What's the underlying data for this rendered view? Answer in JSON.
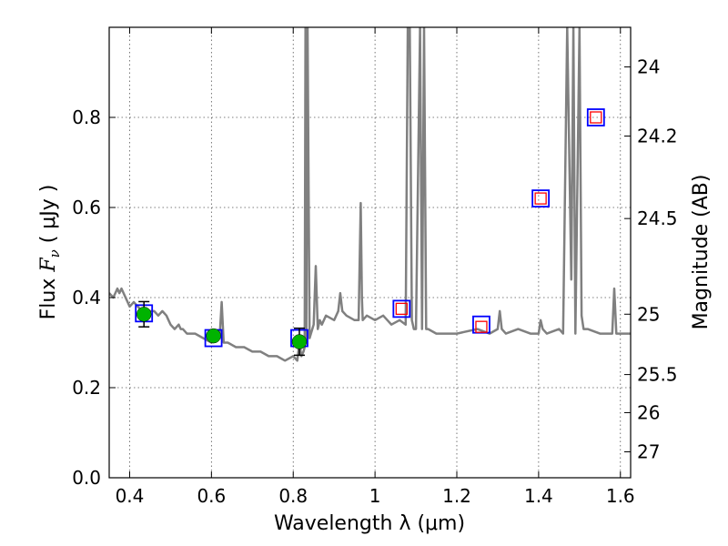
{
  "chart_data": {
    "type": "scatter",
    "title": "",
    "xlabel": "Wavelength  λ (μm)",
    "ylabel": "Flux  F_ν  ( μJy )",
    "ylabel_parts": {
      "pre": "Flux ",
      "symbol": "F",
      "sub": "ν",
      "post": "  ( μJy )"
    },
    "y2label": "Magnitude (AB)",
    "xlim": [
      0.35,
      1.625
    ],
    "ylim": [
      0.0,
      1.0
    ],
    "grid": true,
    "xticks": [
      {
        "value": 0.4,
        "label": "0.4"
      },
      {
        "value": 0.6,
        "label": "0.6"
      },
      {
        "value": 0.8,
        "label": "0.8"
      },
      {
        "value": 1.0,
        "label": "1"
      },
      {
        "value": 1.2,
        "label": "1.2"
      },
      {
        "value": 1.4,
        "label": "1.4"
      },
      {
        "value": 1.6,
        "label": "1.6"
      }
    ],
    "yticks": [
      {
        "value": 0.0,
        "label": "0.0"
      },
      {
        "value": 0.2,
        "label": "0.2"
      },
      {
        "value": 0.4,
        "label": "0.4"
      },
      {
        "value": 0.6,
        "label": "0.6"
      },
      {
        "value": 0.8,
        "label": "0.8"
      }
    ],
    "y2ticks": [
      {
        "value": 24,
        "label": "24"
      },
      {
        "value": 24.2,
        "label": "24.2"
      },
      {
        "value": 24.5,
        "label": "24.5"
      },
      {
        "value": 25,
        "label": "25"
      },
      {
        "value": 25.5,
        "label": "25.5"
      },
      {
        "value": 26,
        "label": "26"
      },
      {
        "value": 27,
        "label": "27"
      }
    ],
    "colors": {
      "sed": "#808080",
      "model_box": "#0000ff",
      "obs_point": "#00b300",
      "upper_box": "#ff0000",
      "grid": "#555555"
    },
    "series": [
      {
        "type": "line",
        "color": "#808080",
        "x": [
          0.35,
          0.36,
          0.37,
          0.375,
          0.38,
          0.39,
          0.4,
          0.41,
          0.42,
          0.43,
          0.44,
          0.45,
          0.46,
          0.47,
          0.48,
          0.49,
          0.5,
          0.51,
          0.52,
          0.525,
          0.53,
          0.54,
          0.55,
          0.56,
          0.58,
          0.6,
          0.62,
          0.625,
          0.63,
          0.64,
          0.66,
          0.68,
          0.7,
          0.72,
          0.74,
          0.76,
          0.78,
          0.8,
          0.81,
          0.815,
          0.82,
          0.825,
          0.828,
          0.83,
          0.832,
          0.835,
          0.84,
          0.85,
          0.855,
          0.86,
          0.865,
          0.87,
          0.88,
          0.9,
          0.91,
          0.915,
          0.92,
          0.93,
          0.95,
          0.96,
          0.965,
          0.968,
          0.97,
          0.98,
          1.0,
          1.02,
          1.04,
          1.06,
          1.075,
          1.08,
          1.085,
          1.09,
          1.095,
          1.1,
          1.11,
          1.115,
          1.12,
          1.125,
          1.13,
          1.15,
          1.2,
          1.25,
          1.28,
          1.3,
          1.305,
          1.31,
          1.32,
          1.35,
          1.38,
          1.4,
          1.405,
          1.41,
          1.42,
          1.45,
          1.46,
          1.47,
          1.48,
          1.485,
          1.49,
          1.5,
          1.505,
          1.51,
          1.52,
          1.55,
          1.58,
          1.585,
          1.59,
          1.6,
          1.625
        ],
        "y": [
          0.41,
          0.4,
          0.42,
          0.41,
          0.42,
          0.4,
          0.38,
          0.39,
          0.38,
          0.37,
          0.36,
          0.37,
          0.37,
          0.36,
          0.37,
          0.36,
          0.34,
          0.33,
          0.34,
          0.33,
          0.33,
          0.32,
          0.32,
          0.32,
          0.31,
          0.3,
          0.31,
          0.39,
          0.3,
          0.3,
          0.29,
          0.29,
          0.28,
          0.28,
          0.27,
          0.27,
          0.26,
          0.27,
          0.26,
          0.3,
          0.27,
          0.28,
          0.29,
          1.0,
          0.31,
          1.0,
          0.31,
          0.34,
          0.47,
          0.33,
          0.35,
          0.34,
          0.36,
          0.35,
          0.37,
          0.41,
          0.37,
          0.36,
          0.35,
          0.35,
          0.61,
          0.4,
          0.35,
          0.36,
          0.35,
          0.36,
          0.34,
          0.35,
          0.34,
          1.0,
          1.0,
          0.35,
          0.33,
          0.33,
          1.0,
          0.33,
          1.0,
          0.33,
          0.33,
          0.32,
          0.32,
          0.33,
          0.32,
          0.33,
          0.37,
          0.33,
          0.32,
          0.33,
          0.32,
          0.32,
          0.35,
          0.33,
          0.32,
          0.33,
          0.32,
          1.0,
          0.44,
          1.0,
          0.32,
          1.0,
          0.36,
          0.33,
          0.33,
          0.32,
          0.32,
          0.42,
          0.32,
          0.32,
          0.32
        ]
      },
      {
        "type": "model_boxes",
        "color": "#0000ff",
        "x": [
          0.435,
          0.605,
          0.815,
          1.065,
          1.26,
          1.405,
          1.54
        ],
        "y": [
          0.365,
          0.31,
          0.31,
          0.375,
          0.34,
          0.62,
          0.8
        ]
      },
      {
        "type": "points_with_errors",
        "color": "#00b300",
        "x": [
          0.435,
          0.605,
          0.815
        ],
        "y": [
          0.363,
          0.315,
          0.302
        ],
        "yerr": [
          0.028,
          0.006,
          0.03
        ]
      },
      {
        "type": "red_boxes",
        "color": "#ff0000",
        "x": [
          1.065,
          1.26,
          1.405,
          1.54
        ],
        "y": [
          0.375,
          0.335,
          0.62,
          0.8
        ]
      }
    ]
  }
}
